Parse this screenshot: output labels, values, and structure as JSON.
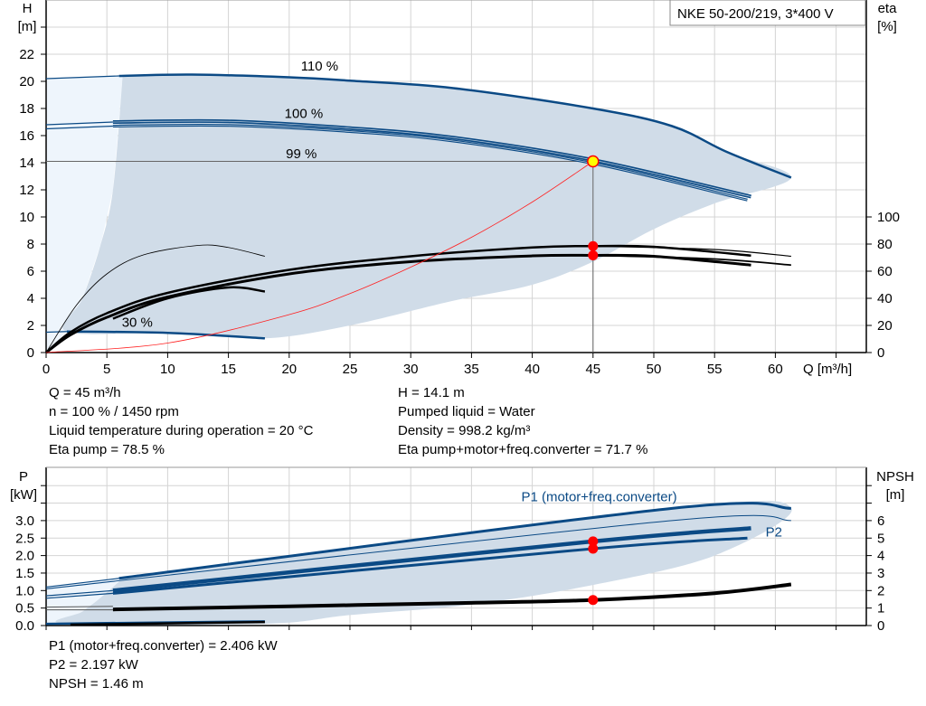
{
  "legend_title": "NKE 50-200/219, 3*400 V",
  "info_top_left": [
    "Q = 45 m³/h",
    "n = 100 % / 1450 rpm",
    "Liquid temperature during operation = 20 °C",
    "Eta pump = 78.5 %"
  ],
  "info_top_right": [
    "H = 14.1 m",
    "Pumped liquid = Water",
    "Density = 998.2 kg/m³",
    "Eta pump+motor+freq.converter = 71.7 %"
  ],
  "info_bottom": [
    "P1 (motor+freq.converter) = 2.406 kW",
    "P2 = 2.197 kW",
    "NPSH = 1.46 m"
  ],
  "colors": {
    "curve_blue": "#0b4a85",
    "range_fill": "#d0dce8",
    "range_light": "#eef5fc",
    "system_curve": "#ff2020",
    "duty_point": "#ffff00",
    "marker": "#ff0000"
  },
  "chart_data": [
    {
      "type": "line",
      "xlabel": "Q [m³/h]",
      "ylabel_left": [
        "H",
        "[m]"
      ],
      "ylabel_right": [
        "eta",
        "[%]"
      ],
      "xlim": [
        0,
        67.5
      ],
      "ylim_left": [
        0,
        26
      ],
      "ylim_right": [
        0,
        260
      ],
      "xticks": [
        0,
        5,
        10,
        15,
        20,
        25,
        30,
        35,
        40,
        45,
        50,
        55,
        60
      ],
      "yticks_left": [
        0,
        2,
        4,
        6,
        8,
        10,
        12,
        14,
        16,
        18,
        20,
        22
      ],
      "yticks_right": [
        0,
        20,
        40,
        60,
        80,
        100
      ],
      "grid": true,
      "curve_labels": [
        {
          "text": "110 %",
          "q": 22.5,
          "h": 20.8
        },
        {
          "text": "100 %",
          "q": 21.2,
          "h": 17.3
        },
        {
          "text": "99 %",
          "q": 21.0,
          "h": 17.0
        },
        {
          "text": "30 %",
          "q": 7.5,
          "h": 1.9
        }
      ],
      "operating_range": [
        [
          6.3,
          20.4
        ],
        [
          12,
          20.5
        ],
        [
          20,
          20.3
        ],
        [
          25,
          20.05
        ],
        [
          33.5,
          19.5
        ],
        [
          45,
          18.0
        ],
        [
          51.5,
          16.7
        ],
        [
          56,
          14.8
        ],
        [
          61.3,
          12.9
        ],
        [
          55,
          11.0
        ],
        [
          50,
          9.1
        ],
        [
          45,
          6.7
        ],
        [
          40,
          5.0
        ],
        [
          33.4,
          3.8
        ],
        [
          25,
          2.0
        ],
        [
          18,
          1.05
        ],
        [
          10,
          1.45
        ],
        [
          1.7,
          1.55
        ],
        [
          3,
          4
        ],
        [
          4.5,
          8
        ],
        [
          5.5,
          12
        ],
        [
          6.3,
          20.4
        ]
      ],
      "light_range": [
        [
          0,
          0
        ],
        [
          0,
          20.2
        ],
        [
          6.3,
          20.4
        ],
        [
          5.5,
          12
        ],
        [
          4.5,
          8
        ],
        [
          3,
          4
        ],
        [
          1.7,
          1.55
        ],
        [
          0,
          0
        ]
      ],
      "head_series": [
        {
          "points": [
            [
              0,
              20.2
            ],
            [
              6,
              20.4
            ]
          ]
        },
        {
          "name": "110 %",
          "points": [
            [
              6,
              20.4
            ],
            [
              12,
              20.5
            ],
            [
              20,
              20.3
            ],
            [
              25,
              20.05
            ],
            [
              33.5,
              19.5
            ],
            [
              45,
              18.0
            ],
            [
              51.5,
              16.7
            ],
            [
              56,
              14.8
            ],
            [
              61.3,
              12.9
            ]
          ]
        },
        {
          "points": [
            [
              0,
              16.8
            ],
            [
              5.5,
              17.0
            ]
          ]
        },
        {
          "name": "100 %",
          "points": [
            [
              5.5,
              17.0
            ],
            [
              15,
              17.05
            ],
            [
              25,
              16.55
            ],
            [
              33.5,
              15.85
            ],
            [
              45,
              14.2
            ],
            [
              58,
              11.5
            ]
          ]
        },
        {
          "points": [
            [
              0,
              16.5
            ],
            [
              5.5,
              16.7
            ]
          ]
        },
        {
          "name": "99 %",
          "points": [
            [
              5.5,
              16.7
            ],
            [
              15,
              16.75
            ],
            [
              25,
              16.3
            ],
            [
              33.5,
              15.6
            ],
            [
              45,
              13.95
            ],
            [
              57.7,
              11.25
            ]
          ]
        },
        {
          "points": [
            [
              0,
              1.5
            ],
            [
              1.7,
              1.55
            ]
          ]
        },
        {
          "name": "30 %",
          "points": [
            [
              1.7,
              1.55
            ],
            [
              10,
              1.45
            ],
            [
              18,
              1.05
            ]
          ]
        }
      ],
      "eta_series": [
        {
          "points": [
            [
              0,
              0
            ],
            [
              2.5,
              35
            ],
            [
              5,
              58
            ],
            [
              8,
              72
            ],
            [
              12.5,
              79
            ],
            [
              15,
              77.5
            ],
            [
              18,
              71
            ]
          ]
        },
        {
          "points": [
            [
              5.5,
              25
            ],
            [
              10,
              40
            ],
            [
              15,
              48
            ],
            [
              18,
              45
            ]
          ]
        },
        {
          "points": [
            [
              0,
              0
            ],
            [
              2,
              15
            ],
            [
              5,
              29
            ],
            [
              10,
              44
            ],
            [
              20,
              61
            ],
            [
              30,
              71
            ],
            [
              40,
              77.5
            ],
            [
              45,
              78.5
            ],
            [
              50,
              78
            ],
            [
              58,
              71.5
            ]
          ]
        },
        {
          "points": [
            [
              45,
              78.5
            ],
            [
              55,
              76
            ],
            [
              61.3,
              71
            ]
          ]
        },
        {
          "points": [
            [
              0,
              0
            ],
            [
              2,
              13
            ],
            [
              5,
              26
            ],
            [
              10,
              41
            ],
            [
              20,
              58
            ],
            [
              30,
              67
            ],
            [
              40,
              71.3
            ],
            [
              45,
              71.7
            ],
            [
              50,
              71
            ],
            [
              58,
              64.5
            ]
          ]
        },
        {
          "points": [
            [
              45,
              71.7
            ],
            [
              55,
              69
            ],
            [
              61.3,
              64.5
            ]
          ]
        }
      ],
      "system_curve": [
        [
          0,
          0
        ],
        [
          10,
          0.7
        ],
        [
          20,
          2.8
        ],
        [
          25,
          4.35
        ],
        [
          30,
          6.3
        ],
        [
          35,
          8.5
        ],
        [
          40,
          11.1
        ],
        [
          45,
          14.1
        ]
      ],
      "duty_point": {
        "q": 45,
        "h": 14.1,
        "eta_pump": 78.5,
        "eta_total": 71.7
      }
    },
    {
      "type": "line",
      "ylabel_left": [
        "P",
        "[kW]"
      ],
      "ylabel_right": [
        "NPSH",
        "[m]"
      ],
      "xlim": [
        0,
        67.5
      ],
      "ylim_left": [
        0,
        4.5
      ],
      "ylim_right": [
        0,
        9
      ],
      "yticks_left": [
        "0.0",
        "0.5",
        "1.0",
        "1.5",
        "2.0",
        "2.5",
        "3.0"
      ],
      "yticks_right": [
        0,
        1,
        2,
        3,
        4,
        5,
        6
      ],
      "grid": true,
      "curve_labels": [
        {
          "text": "P1 (motor+freq.converter)",
          "q": 45.5,
          "p": 3.55
        },
        {
          "text": "P2",
          "q": 59.2,
          "p": 2.55
        }
      ],
      "operating_range": [
        [
          6.3,
          1.35
        ],
        [
          51.5,
          3.35
        ],
        [
          61.3,
          3.35
        ],
        [
          55,
          2.0
        ],
        [
          45,
          1.16
        ],
        [
          35,
          0.6
        ],
        [
          25,
          0.3
        ],
        [
          18,
          0.05
        ],
        [
          1.7,
          0.05
        ],
        [
          3,
          0.4
        ],
        [
          4.5,
          0.8
        ],
        [
          6.3,
          1.35
        ]
      ],
      "light_range": [
        [
          0,
          0
        ],
        [
          0,
          1.1
        ],
        [
          6.3,
          1.35
        ],
        [
          4.5,
          0.8
        ],
        [
          3,
          0.4
        ],
        [
          1.7,
          0.05
        ],
        [
          0,
          0
        ]
      ],
      "power_series": [
        {
          "points": [
            [
              0,
              1.1
            ],
            [
              6,
              1.35
            ]
          ]
        },
        {
          "name": "P1 (motor+freq.converter)",
          "points": [
            [
              6,
              1.35
            ],
            [
              51.5,
              3.35
            ],
            [
              61.3,
              3.35
            ]
          ]
        },
        {
          "points": [
            [
              0,
              1.05
            ],
            [
              51.5,
              3.0
            ],
            [
              61.3,
              3.0
            ]
          ]
        },
        {
          "points": [
            [
              0,
              0.85
            ],
            [
              5.5,
              1.0
            ]
          ]
        },
        {
          "points": [
            [
              5.5,
              1.0
            ],
            [
              45,
              2.406
            ],
            [
              58,
              2.78
            ]
          ]
        },
        {
          "points": [
            [
              0,
              0.78
            ],
            [
              5.5,
              0.92
            ]
          ]
        },
        {
          "name": "P2",
          "points": [
            [
              5.5,
              0.92
            ],
            [
              45,
              2.197
            ],
            [
              57.7,
              2.5
            ]
          ]
        },
        {
          "points": [
            [
              0,
              0.05
            ],
            [
              5,
              0.07
            ],
            [
              18,
              0.12
            ]
          ]
        }
      ],
      "npsh_series": [
        {
          "points": [
            [
              0,
              1.05
            ],
            [
              5.5,
              1.1
            ]
          ]
        },
        {
          "points": [
            [
              0,
              0.9
            ],
            [
              5.5,
              0.9
            ]
          ]
        },
        {
          "points": [
            [
              5.5,
              0.92
            ],
            [
              20,
              1.1
            ],
            [
              35,
              1.3
            ],
            [
              45,
              1.46
            ],
            [
              55,
              1.85
            ],
            [
              61.3,
              2.35
            ]
          ]
        },
        {
          "points": [
            [
              2,
              0.05
            ],
            [
              18,
              0.2
            ]
          ]
        }
      ],
      "duty_point": {
        "q": 45,
        "p1": 2.406,
        "p2": 2.197,
        "npsh": 1.46
      }
    }
  ]
}
